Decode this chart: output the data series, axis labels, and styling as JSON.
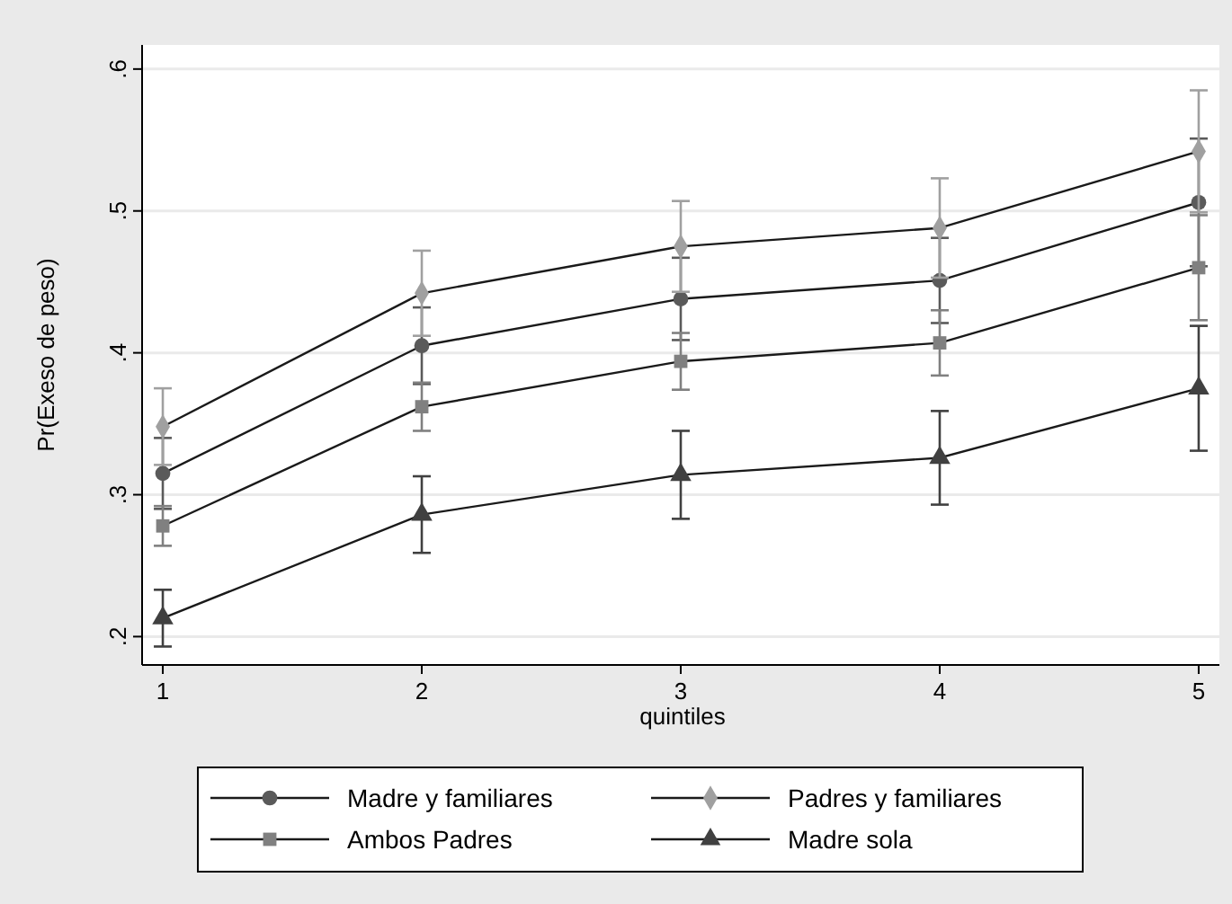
{
  "chart_data": {
    "type": "line",
    "xlabel": "quintiles",
    "ylabel": "Pr(Exeso de peso)",
    "x": [
      1,
      2,
      3,
      4,
      5
    ],
    "xlim": [
      0.92,
      5.08
    ],
    "xticks": [
      1,
      2,
      3,
      4,
      5
    ],
    "ylim": [
      0.18,
      0.617
    ],
    "yticks": [
      {
        "value": 0.2,
        "label": ".2"
      },
      {
        "value": 0.3,
        "label": ".3"
      },
      {
        "value": 0.4,
        "label": ".4"
      },
      {
        "value": 0.5,
        "label": ".5"
      },
      {
        "value": 0.6,
        "label": ".6"
      }
    ],
    "grid": "y",
    "legend": "bottom",
    "line_style": "solid",
    "series": [
      {
        "name": "Madre y familiares",
        "color": "#5a5a5a",
        "marker": "circle",
        "values": [
          0.315,
          0.405,
          0.438,
          0.451,
          0.506
        ],
        "errors": [
          0.025,
          0.027,
          0.029,
          0.03,
          0.045
        ]
      },
      {
        "name": "Padres y familiares",
        "color": "#a0a0a0",
        "marker": "diamond",
        "values": [
          0.348,
          0.442,
          0.475,
          0.488,
          0.542
        ],
        "errors": [
          0.027,
          0.03,
          0.032,
          0.035,
          0.043
        ]
      },
      {
        "name": "Ambos Padres",
        "color": "#808080",
        "marker": "square",
        "values": [
          0.278,
          0.362,
          0.394,
          0.407,
          0.46
        ],
        "errors": [
          0.014,
          0.017,
          0.02,
          0.023,
          0.037
        ]
      },
      {
        "name": "Madre sola",
        "color": "#404040",
        "marker": "triangle",
        "values": [
          0.213,
          0.286,
          0.314,
          0.326,
          0.375
        ],
        "errors": [
          0.02,
          0.027,
          0.031,
          0.033,
          0.044
        ]
      }
    ]
  }
}
